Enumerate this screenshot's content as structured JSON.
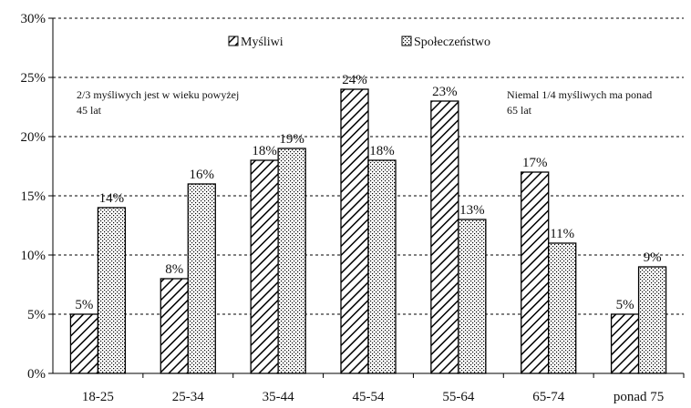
{
  "chart_data": {
    "type": "bar",
    "categories": [
      "18-25",
      "25-34",
      "35-44",
      "45-54",
      "55-64",
      "65-74",
      "ponad 75"
    ],
    "series": [
      {
        "name": "Myśliwi",
        "values": [
          5,
          8,
          18,
          24,
          23,
          17,
          5
        ],
        "labels": [
          "5%",
          "8%",
          "18%",
          "24%",
          "23%",
          "17%",
          "5%"
        ],
        "pattern": "diagonal-hatch"
      },
      {
        "name": "Społeczeństwo",
        "values": [
          14,
          16,
          19,
          18,
          13,
          11,
          9
        ],
        "labels": [
          "14%",
          "16%",
          "19%",
          "18%",
          "13%",
          "11%",
          "9%"
        ],
        "pattern": "dots"
      }
    ],
    "ylim": [
      0,
      30
    ],
    "y_ticks": [
      0,
      5,
      10,
      15,
      20,
      25,
      30
    ],
    "y_tick_labels": [
      "0%",
      "5%",
      "10%",
      "15%",
      "20%",
      "25%",
      "30%"
    ],
    "grid": "horizontal-dashed",
    "legend": "top-center",
    "annotations": [
      {
        "lines": [
          "2/3 myśliwych jest w wieku powyżej",
          "45 lat"
        ],
        "placement": "top-left"
      },
      {
        "lines": [
          "Niemal 1/4 myśliwych ma ponad",
          "65 lat"
        ],
        "placement": "top-right"
      }
    ],
    "colors": {
      "bar_fill": "#ffffff",
      "stroke": "#000000",
      "pattern": "#000000"
    }
  }
}
